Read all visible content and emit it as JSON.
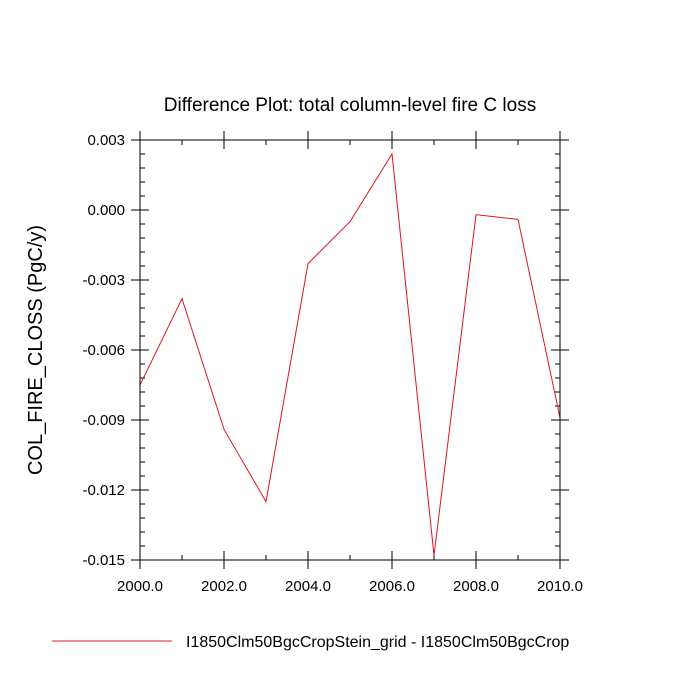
{
  "chart_data": {
    "type": "line",
    "title": "Difference Plot: total column-level fire C loss",
    "xlabel": "",
    "ylabel": "COL_FIRE_CLOSS  (PgC/y)",
    "xlim": [
      2000,
      2010
    ],
    "ylim": [
      -0.015,
      0.003
    ],
    "x_major_ticks": [
      2000,
      2002,
      2004,
      2006,
      2008,
      2010
    ],
    "x_tick_labels": [
      "2000.0",
      "2002.0",
      "2004.0",
      "2006.0",
      "2008.0",
      "2010.0"
    ],
    "x_minor_step": 1,
    "y_major_ticks": [
      0.003,
      0.0,
      -0.003,
      -0.006,
      -0.009,
      -0.012,
      -0.015
    ],
    "y_tick_labels": [
      "0.003",
      "0.000",
      "-0.003",
      "-0.006",
      "-0.009",
      "-0.012",
      "-0.015"
    ],
    "y_minor_step": 0.0006,
    "grid": false,
    "legend_position": "bottom",
    "series": [
      {
        "name": "I1850Clm50BgcCropStein_grid - I1850Clm50BgcCrop",
        "color": "#e0141e",
        "x": [
          2000,
          2001,
          2002,
          2003,
          2004,
          2005,
          2006,
          2007,
          2008,
          2009,
          2010
        ],
        "y": [
          -0.0075,
          -0.0038,
          -0.0094,
          -0.0125,
          -0.0023,
          -0.0005,
          0.0024,
          -0.0148,
          -0.0002,
          -0.0004,
          -0.0089
        ]
      }
    ]
  }
}
